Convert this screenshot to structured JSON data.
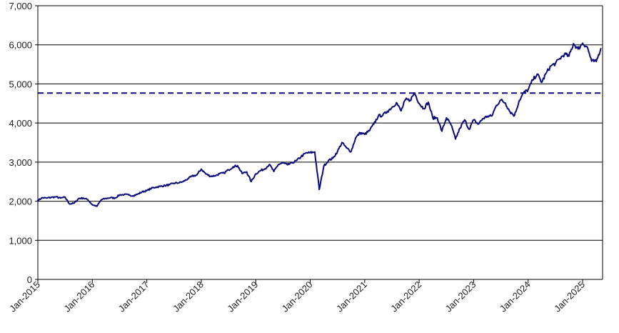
{
  "chart_data": {
    "type": "line",
    "title": "",
    "xlabel": "",
    "ylabel": "",
    "ylim": [
      0,
      7000
    ],
    "yticks": [
      0,
      1000,
      2000,
      3000,
      4000,
      5000,
      6000,
      7000
    ],
    "ytick_labels": [
      "0",
      "1,000",
      "2,000",
      "3,000",
      "4,000",
      "5,000",
      "6,000",
      "7,000"
    ],
    "xlim": [
      "2015-01",
      "2025-05"
    ],
    "xtick_labels": [
      "Jan-2015",
      "Jan-2016",
      "Jan-2017",
      "Jan-2018",
      "Jan-2019",
      "Jan-2020",
      "Jan-2021",
      "Jan-2022",
      "Jan-2023",
      "Jan-2024",
      "Jan-2025"
    ],
    "grid": "horizontal",
    "legend": "none",
    "line_color": "#0a0a7a",
    "reference_line": {
      "y": 4766,
      "style": "dashed",
      "color": "#0a0a7a"
    },
    "series": [
      {
        "x": [
          "2015-01",
          "2015-02",
          "2015-03",
          "2015-04",
          "2015-05",
          "2015-06",
          "2015-07",
          "2015-08",
          "2015-09",
          "2015-10",
          "2015-11",
          "2015-12",
          "2016-01",
          "2016-02",
          "2016-03",
          "2016-04",
          "2016-05",
          "2016-06",
          "2016-07",
          "2016-08",
          "2016-09",
          "2016-10",
          "2016-11",
          "2016-12",
          "2017-01",
          "2017-02",
          "2017-03",
          "2017-04",
          "2017-05",
          "2017-06",
          "2017-07",
          "2017-08",
          "2017-09",
          "2017-10",
          "2017-11",
          "2017-12",
          "2018-01",
          "2018-02",
          "2018-03",
          "2018-04",
          "2018-05",
          "2018-06",
          "2018-07",
          "2018-08",
          "2018-09",
          "2018-10",
          "2018-11",
          "2018-12",
          "2019-01",
          "2019-02",
          "2019-03",
          "2019-04",
          "2019-05",
          "2019-06",
          "2019-07",
          "2019-08",
          "2019-09",
          "2019-10",
          "2019-11",
          "2019-12",
          "2020-01",
          "2020-02",
          "2020-03",
          "2020-04",
          "2020-05",
          "2020-06",
          "2020-07",
          "2020-08",
          "2020-09",
          "2020-10",
          "2020-11",
          "2020-12",
          "2021-01",
          "2021-02",
          "2021-03",
          "2021-04",
          "2021-05",
          "2021-06",
          "2021-07",
          "2021-08",
          "2021-09",
          "2021-10",
          "2021-11",
          "2021-12",
          "2022-01",
          "2022-02",
          "2022-03",
          "2022-04",
          "2022-05",
          "2022-06",
          "2022-07",
          "2022-08",
          "2022-09",
          "2022-10",
          "2022-11",
          "2022-12",
          "2023-01",
          "2023-02",
          "2023-03",
          "2023-04",
          "2023-05",
          "2023-06",
          "2023-07",
          "2023-08",
          "2023-09",
          "2023-10",
          "2023-11",
          "2023-12",
          "2024-01",
          "2024-02",
          "2024-03",
          "2024-04",
          "2024-05",
          "2024-06",
          "2024-07",
          "2024-08",
          "2024-09",
          "2024-10",
          "2024-11",
          "2024-12",
          "2025-01",
          "2025-02",
          "2025-03",
          "2025-04",
          "2025-05"
        ],
        "values": [
          2020,
          2090,
          2080,
          2100,
          2110,
          2080,
          2100,
          1930,
          1950,
          2070,
          2080,
          2040,
          1910,
          1870,
          2040,
          2070,
          2090,
          2080,
          2160,
          2170,
          2160,
          2140,
          2180,
          2240,
          2270,
          2330,
          2360,
          2380,
          2400,
          2420,
          2460,
          2470,
          2500,
          2570,
          2640,
          2670,
          2820,
          2700,
          2640,
          2650,
          2700,
          2720,
          2800,
          2880,
          2910,
          2710,
          2750,
          2500,
          2700,
          2780,
          2830,
          2940,
          2760,
          2940,
          2980,
          2930,
          2980,
          3040,
          3140,
          3230,
          3240,
          3260,
          2300,
          2900,
          3040,
          3100,
          3270,
          3500,
          3360,
          3270,
          3620,
          3750,
          3710,
          3800,
          3970,
          4180,
          4200,
          4300,
          4400,
          4520,
          4310,
          4600,
          4580,
          4770,
          4500,
          4370,
          4530,
          4130,
          4130,
          3790,
          4130,
          3960,
          3590,
          3870,
          4080,
          3840,
          4080,
          3970,
          4110,
          4170,
          4180,
          4450,
          4590,
          4510,
          4290,
          4190,
          4560,
          4770,
          4850,
          5100,
          5250,
          5040,
          5280,
          5460,
          5520,
          5650,
          5760,
          5710,
          6030,
          5890,
          6040,
          5950,
          5580,
          5570,
          5900
        ]
      }
    ]
  }
}
